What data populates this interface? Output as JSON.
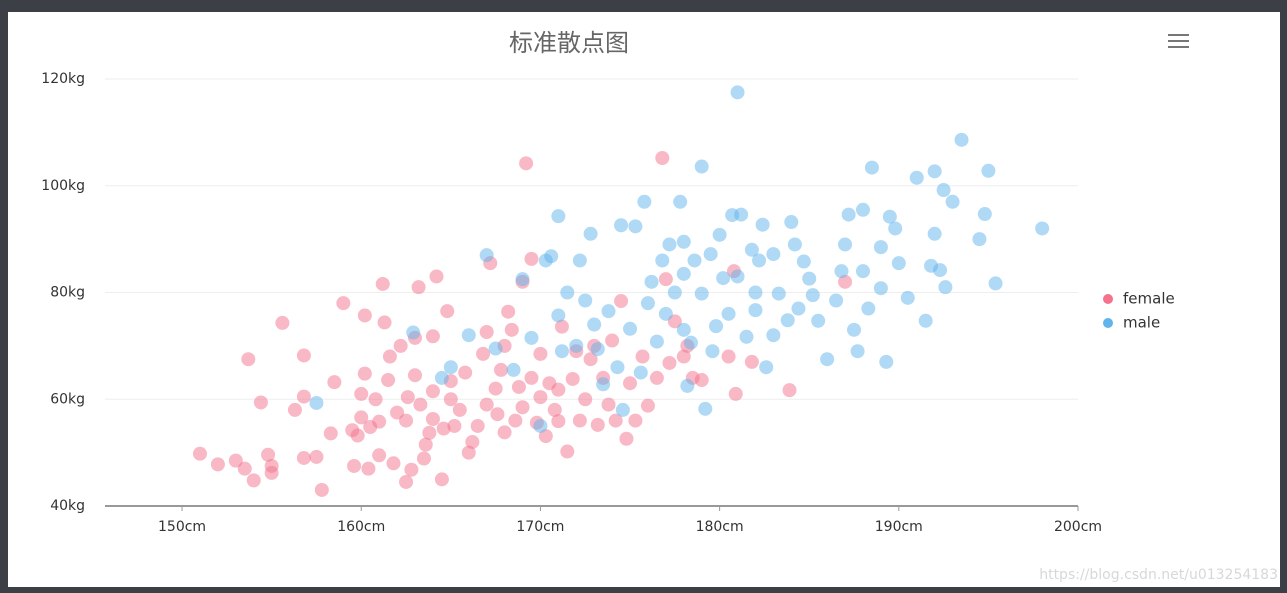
{
  "chart_data": {
    "type": "scatter",
    "title": "标准散点图",
    "xlim": [
      145.7,
      200
    ],
    "xticks": [
      {
        "value": 150,
        "label": "150cm"
      },
      {
        "value": 160,
        "label": "160cm"
      },
      {
        "value": 170,
        "label": "170cm"
      },
      {
        "value": 180,
        "label": "180cm"
      },
      {
        "value": 190,
        "label": "190cm"
      },
      {
        "value": 200,
        "label": "200cm"
      }
    ],
    "ylim": [
      40,
      120
    ],
    "yticks": [
      {
        "value": 40,
        "label": "40kg"
      },
      {
        "value": 60,
        "label": "60kg"
      },
      {
        "value": 80,
        "label": "80kg"
      },
      {
        "value": 100,
        "label": "100kg"
      },
      {
        "value": 120,
        "label": "120kg"
      }
    ],
    "grid": true,
    "legend": "right",
    "series": [
      {
        "name": "female",
        "color": "#f4728c",
        "values": [
          [
            151,
            49.8
          ],
          [
            152,
            47.8
          ],
          [
            153,
            48.5
          ],
          [
            153.5,
            47
          ],
          [
            154,
            44.8
          ],
          [
            154.4,
            59.4
          ],
          [
            153.7,
            67.5
          ],
          [
            154.8,
            49.6
          ],
          [
            155,
            47.5
          ],
          [
            155,
            46.2
          ],
          [
            155.6,
            74.3
          ],
          [
            156.3,
            58
          ],
          [
            156.8,
            68.2
          ],
          [
            156.8,
            60.5
          ],
          [
            156.8,
            49
          ],
          [
            157.5,
            49.2
          ],
          [
            157.8,
            43
          ],
          [
            158.3,
            53.6
          ],
          [
            158.5,
            63.2
          ],
          [
            159,
            78
          ],
          [
            159.5,
            54.2
          ],
          [
            159.6,
            47.5
          ],
          [
            159.8,
            53.2
          ],
          [
            160,
            56.6
          ],
          [
            160,
            61
          ],
          [
            160.2,
            64.8
          ],
          [
            160.2,
            75.7
          ],
          [
            160.4,
            47
          ],
          [
            160.5,
            54.8
          ],
          [
            160.8,
            60
          ],
          [
            161,
            49.5
          ],
          [
            161,
            55.8
          ],
          [
            161.2,
            81.6
          ],
          [
            161.3,
            74.4
          ],
          [
            161.5,
            63.6
          ],
          [
            161.6,
            68
          ],
          [
            161.8,
            48
          ],
          [
            162,
            57.5
          ],
          [
            162.2,
            70
          ],
          [
            162.5,
            44.5
          ],
          [
            162.5,
            56
          ],
          [
            162.6,
            60.4
          ],
          [
            162.8,
            46.8
          ],
          [
            163,
            64.5
          ],
          [
            163,
            71.5
          ],
          [
            163.2,
            81
          ],
          [
            163.3,
            59
          ],
          [
            163.5,
            48.9
          ],
          [
            163.6,
            51.5
          ],
          [
            163.8,
            53.7
          ],
          [
            164,
            56.3
          ],
          [
            164,
            61.5
          ],
          [
            164,
            71.8
          ],
          [
            164.2,
            83
          ],
          [
            164.5,
            45
          ],
          [
            164.6,
            54.5
          ],
          [
            164.8,
            76.5
          ],
          [
            165,
            60
          ],
          [
            165,
            63.4
          ],
          [
            165.2,
            55
          ],
          [
            165.5,
            58
          ],
          [
            165.8,
            65
          ],
          [
            166,
            50
          ],
          [
            166.2,
            52
          ],
          [
            166.5,
            55
          ],
          [
            166.8,
            68.5
          ],
          [
            167,
            59
          ],
          [
            167,
            72.6
          ],
          [
            167.2,
            85.5
          ],
          [
            167.5,
            62
          ],
          [
            167.6,
            57.2
          ],
          [
            167.8,
            65.5
          ],
          [
            168,
            53.8
          ],
          [
            168,
            70
          ],
          [
            168.2,
            76.4
          ],
          [
            168.4,
            73
          ],
          [
            168.6,
            56
          ],
          [
            168.8,
            62.3
          ],
          [
            169,
            82
          ],
          [
            169,
            58.5
          ],
          [
            169.2,
            104.2
          ],
          [
            169.5,
            86.3
          ],
          [
            169.5,
            64
          ],
          [
            169.8,
            55.6
          ],
          [
            170,
            60.4
          ],
          [
            170,
            68.5
          ],
          [
            170.3,
            53.1
          ],
          [
            170.5,
            63
          ],
          [
            170.8,
            58
          ],
          [
            171,
            61.8
          ],
          [
            171,
            55.9
          ],
          [
            171.2,
            73.6
          ],
          [
            171.5,
            50.2
          ],
          [
            171.8,
            63.8
          ],
          [
            172,
            69
          ],
          [
            172.2,
            56
          ],
          [
            172.5,
            60
          ],
          [
            172.8,
            67.5
          ],
          [
            173,
            70
          ],
          [
            173.2,
            55.2
          ],
          [
            173.5,
            64
          ],
          [
            173.8,
            59
          ],
          [
            174,
            71
          ],
          [
            174.2,
            56
          ],
          [
            174.5,
            78.4
          ],
          [
            174.8,
            52.6
          ],
          [
            175,
            63
          ],
          [
            175.3,
            56
          ],
          [
            175.7,
            68
          ],
          [
            176,
            58.8
          ],
          [
            176.5,
            64
          ],
          [
            176.8,
            105.2
          ],
          [
            177,
            82.5
          ],
          [
            177.2,
            66.8
          ],
          [
            177.5,
            74.6
          ],
          [
            178,
            68
          ],
          [
            178.2,
            70
          ],
          [
            178.5,
            64
          ],
          [
            179,
            63.6
          ],
          [
            180.5,
            68
          ],
          [
            180.8,
            84
          ],
          [
            180.9,
            61
          ],
          [
            181.8,
            67
          ],
          [
            183.9,
            61.7
          ],
          [
            187,
            82
          ]
        ]
      },
      {
        "name": "male",
        "color": "#5fb4ec",
        "values": [
          [
            157.5,
            59.3
          ],
          [
            162.9,
            72.5
          ],
          [
            164.5,
            64
          ],
          [
            165,
            66
          ],
          [
            166,
            72
          ],
          [
            167,
            87
          ],
          [
            167.5,
            69.5
          ],
          [
            168.5,
            65.5
          ],
          [
            169,
            82.5
          ],
          [
            169.5,
            71.5
          ],
          [
            170,
            55
          ],
          [
            170.3,
            86
          ],
          [
            170.6,
            86.8
          ],
          [
            171,
            94.3
          ],
          [
            171,
            75.7
          ],
          [
            171.2,
            69
          ],
          [
            171.5,
            80
          ],
          [
            172,
            70
          ],
          [
            172.2,
            86
          ],
          [
            172.5,
            78.5
          ],
          [
            172.8,
            91
          ],
          [
            173,
            74
          ],
          [
            173.2,
            69.4
          ],
          [
            173.5,
            62.8
          ],
          [
            173.8,
            76.5
          ],
          [
            174.3,
            66
          ],
          [
            174.5,
            92.6
          ],
          [
            174.6,
            58
          ],
          [
            175,
            73.2
          ],
          [
            175.3,
            92.4
          ],
          [
            175.6,
            65
          ],
          [
            175.8,
            97
          ],
          [
            176,
            78
          ],
          [
            176.2,
            82
          ],
          [
            176.5,
            70.8
          ],
          [
            176.8,
            86
          ],
          [
            177,
            76
          ],
          [
            177.2,
            89
          ],
          [
            177.5,
            80
          ],
          [
            177.8,
            97
          ],
          [
            178,
            83.5
          ],
          [
            178,
            89.5
          ],
          [
            178,
            73
          ],
          [
            178.2,
            62.5
          ],
          [
            178.4,
            70.6
          ],
          [
            178.6,
            86
          ],
          [
            179,
            103.6
          ],
          [
            179,
            79.8
          ],
          [
            179.2,
            58.2
          ],
          [
            179.5,
            87.2
          ],
          [
            179.6,
            69
          ],
          [
            179.8,
            73.7
          ],
          [
            180,
            90.8
          ],
          [
            180.2,
            82.7
          ],
          [
            180.5,
            76
          ],
          [
            180.7,
            94.5
          ],
          [
            181,
            117.5
          ],
          [
            181,
            83
          ],
          [
            181.2,
            94.6
          ],
          [
            181.5,
            71.7
          ],
          [
            181.8,
            88
          ],
          [
            182,
            80
          ],
          [
            182,
            76.7
          ],
          [
            182.2,
            86
          ],
          [
            182.4,
            92.7
          ],
          [
            182.6,
            66
          ],
          [
            183,
            87.2
          ],
          [
            183,
            72
          ],
          [
            183.3,
            79.8
          ],
          [
            183.8,
            74.8
          ],
          [
            184,
            93.2
          ],
          [
            184.2,
            89
          ],
          [
            184.4,
            77
          ],
          [
            184.7,
            85.8
          ],
          [
            185,
            82.6
          ],
          [
            185.2,
            79.5
          ],
          [
            185.5,
            74.7
          ],
          [
            186,
            67.5
          ],
          [
            186.5,
            78.5
          ],
          [
            186.8,
            84
          ],
          [
            187,
            89
          ],
          [
            187.2,
            94.6
          ],
          [
            187.5,
            73
          ],
          [
            187.7,
            69
          ],
          [
            188,
            84
          ],
          [
            188,
            95.5
          ],
          [
            188.3,
            77
          ],
          [
            188.5,
            103.4
          ],
          [
            189,
            88.5
          ],
          [
            189,
            80.8
          ],
          [
            189.3,
            67
          ],
          [
            189.5,
            94.2
          ],
          [
            189.8,
            92
          ],
          [
            190,
            85.5
          ],
          [
            190.5,
            79
          ],
          [
            191,
            101.5
          ],
          [
            191.5,
            74.7
          ],
          [
            191.8,
            85
          ],
          [
            192,
            102.7
          ],
          [
            192,
            91
          ],
          [
            192.3,
            84.2
          ],
          [
            192.5,
            99.2
          ],
          [
            192.6,
            81
          ],
          [
            193,
            97
          ],
          [
            193.5,
            108.6
          ],
          [
            194.5,
            90
          ],
          [
            194.8,
            94.7
          ],
          [
            195,
            102.8
          ],
          [
            195.4,
            81.7
          ],
          [
            198,
            92
          ]
        ]
      }
    ]
  },
  "watermark": "https://blog.csdn.net/u013254183"
}
